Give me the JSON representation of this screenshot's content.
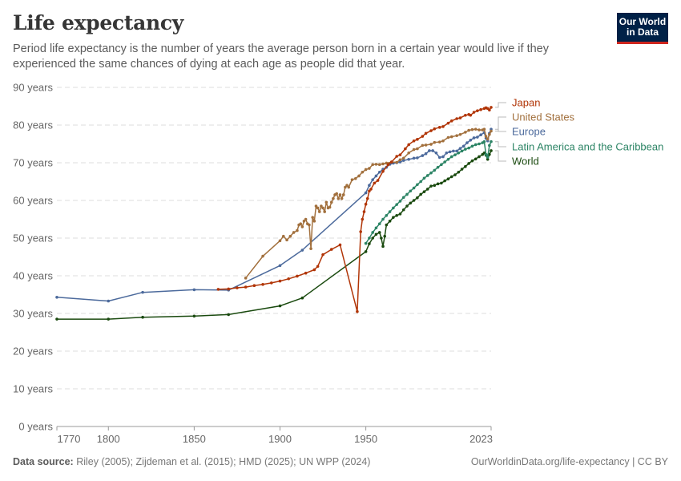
{
  "header": {
    "title": "Life expectancy",
    "subtitle": "Period life expectancy is the number of years the average person born in a certain year would live if they experienced the same chances of dying at each age as people did that year.",
    "logo_line1": "Our World",
    "logo_line2": "in Data"
  },
  "footer": {
    "source_label": "Data source:",
    "source_text": " Riley (2005); Zijdeman et al. (2015); HMD (2025); UN WPP (2024)",
    "url": "OurWorldinData.org/life-expectancy | CC BY"
  },
  "colors": {
    "Japan": "#b13507",
    "United States": "#a2703d",
    "Europe": "#4c6a9c",
    "Latin America and the Caribbean": "#2c8465",
    "World": "#1a4a0f",
    "grid": "#dddddd",
    "axis_text": "#666666"
  },
  "chart_data": {
    "type": "line",
    "title": "Life expectancy",
    "xlabel": "",
    "ylabel": "",
    "xlim": [
      1770,
      2023
    ],
    "ylim": [
      0,
      90
    ],
    "x_ticks": [
      1770,
      1800,
      1850,
      1900,
      1950,
      2023
    ],
    "y_ticks": [
      0,
      10,
      20,
      30,
      40,
      50,
      60,
      70,
      80,
      90
    ],
    "y_tick_labels": [
      "0 years",
      "10 years",
      "20 years",
      "30 years",
      "40 years",
      "50 years",
      "60 years",
      "70 years",
      "80 years",
      "90 years"
    ],
    "grid": true,
    "legend": "right",
    "series": [
      {
        "name": "Japan",
        "points": [
          [
            1864,
            36.4
          ],
          [
            1870,
            36.5
          ],
          [
            1875,
            36.8
          ],
          [
            1880,
            37.0
          ],
          [
            1885,
            37.4
          ],
          [
            1890,
            37.7
          ],
          [
            1895,
            38.1
          ],
          [
            1900,
            38.6
          ],
          [
            1905,
            39.2
          ],
          [
            1910,
            39.9
          ],
          [
            1915,
            40.7
          ],
          [
            1920,
            41.6
          ],
          [
            1922,
            42.5
          ],
          [
            1925,
            45.6
          ],
          [
            1930,
            47.0
          ],
          [
            1935,
            48.2
          ],
          [
            1945,
            30.5
          ],
          [
            1947,
            51.7
          ],
          [
            1948,
            55.0
          ],
          [
            1949,
            57.0
          ],
          [
            1950,
            59.0
          ],
          [
            1951,
            60.5
          ],
          [
            1952,
            62.5
          ],
          [
            1953,
            63.0
          ],
          [
            1955,
            64.6
          ],
          [
            1957,
            65.3
          ],
          [
            1960,
            67.7
          ],
          [
            1963,
            69.5
          ],
          [
            1965,
            70.2
          ],
          [
            1968,
            71.7
          ],
          [
            1970,
            72.1
          ],
          [
            1973,
            73.7
          ],
          [
            1975,
            74.8
          ],
          [
            1978,
            75.8
          ],
          [
            1980,
            76.2
          ],
          [
            1983,
            77.0
          ],
          [
            1985,
            77.8
          ],
          [
            1988,
            78.5
          ],
          [
            1990,
            79.0
          ],
          [
            1993,
            79.4
          ],
          [
            1995,
            79.6
          ],
          [
            1998,
            80.5
          ],
          [
            2000,
            81.1
          ],
          [
            2003,
            81.7
          ],
          [
            2005,
            81.9
          ],
          [
            2008,
            82.6
          ],
          [
            2010,
            82.8
          ],
          [
            2011,
            82.6
          ],
          [
            2013,
            83.4
          ],
          [
            2015,
            83.8
          ],
          [
            2017,
            84.1
          ],
          [
            2019,
            84.4
          ],
          [
            2020,
            84.6
          ],
          [
            2021,
            84.4
          ],
          [
            2022,
            84.0
          ],
          [
            2023,
            84.7
          ]
        ]
      },
      {
        "name": "United States",
        "points": [
          [
            1880,
            39.4
          ],
          [
            1890,
            45.2
          ],
          [
            1900,
            49.3
          ],
          [
            1902,
            50.5
          ],
          [
            1904,
            49.5
          ],
          [
            1906,
            50.5
          ],
          [
            1908,
            51.5
          ],
          [
            1910,
            52.0
          ],
          [
            1911,
            53.5
          ],
          [
            1912,
            53.8
          ],
          [
            1913,
            53.0
          ],
          [
            1914,
            54.5
          ],
          [
            1915,
            55.0
          ],
          [
            1916,
            53.8
          ],
          [
            1917,
            53.5
          ],
          [
            1918,
            47.2
          ],
          [
            1919,
            55.5
          ],
          [
            1920,
            54.5
          ],
          [
            1921,
            58.5
          ],
          [
            1922,
            58.0
          ],
          [
            1923,
            57.0
          ],
          [
            1924,
            58.5
          ],
          [
            1925,
            58.0
          ],
          [
            1926,
            57.0
          ],
          [
            1927,
            59.5
          ],
          [
            1928,
            58.0
          ],
          [
            1929,
            58.2
          ],
          [
            1930,
            59.5
          ],
          [
            1931,
            60.5
          ],
          [
            1932,
            61.5
          ],
          [
            1933,
            61.8
          ],
          [
            1934,
            60.5
          ],
          [
            1935,
            61.5
          ],
          [
            1936,
            60.5
          ],
          [
            1937,
            61.5
          ],
          [
            1938,
            63.5
          ],
          [
            1939,
            64.0
          ],
          [
            1940,
            63.5
          ],
          [
            1942,
            65.5
          ],
          [
            1944,
            65.8
          ],
          [
            1946,
            66.5
          ],
          [
            1948,
            67.5
          ],
          [
            1950,
            68.2
          ],
          [
            1952,
            68.5
          ],
          [
            1954,
            69.5
          ],
          [
            1956,
            69.6
          ],
          [
            1958,
            69.5
          ],
          [
            1960,
            69.7
          ],
          [
            1962,
            69.9
          ],
          [
            1965,
            70.2
          ],
          [
            1968,
            70.1
          ],
          [
            1970,
            70.8
          ],
          [
            1972,
            71.2
          ],
          [
            1975,
            72.6
          ],
          [
            1978,
            73.5
          ],
          [
            1980,
            73.7
          ],
          [
            1983,
            74.6
          ],
          [
            1985,
            74.7
          ],
          [
            1988,
            74.9
          ],
          [
            1990,
            75.4
          ],
          [
            1993,
            75.5
          ],
          [
            1995,
            75.8
          ],
          [
            1998,
            76.7
          ],
          [
            2000,
            76.9
          ],
          [
            2003,
            77.2
          ],
          [
            2005,
            77.5
          ],
          [
            2008,
            78.1
          ],
          [
            2010,
            78.6
          ],
          [
            2012,
            78.8
          ],
          [
            2014,
            78.9
          ],
          [
            2016,
            78.7
          ],
          [
            2018,
            78.7
          ],
          [
            2019,
            78.9
          ],
          [
            2020,
            77.0
          ],
          [
            2021,
            76.3
          ],
          [
            2022,
            77.5
          ],
          [
            2023,
            78.4
          ]
        ]
      },
      {
        "name": "Europe",
        "points": [
          [
            1770,
            34.3
          ],
          [
            1800,
            33.3
          ],
          [
            1820,
            35.6
          ],
          [
            1850,
            36.3
          ],
          [
            1870,
            36.2
          ],
          [
            1900,
            42.7
          ],
          [
            1913,
            46.8
          ],
          [
            1950,
            62.0
          ],
          [
            1952,
            64.0
          ],
          [
            1954,
            65.5
          ],
          [
            1956,
            66.5
          ],
          [
            1958,
            67.5
          ],
          [
            1960,
            68.3
          ],
          [
            1962,
            68.8
          ],
          [
            1964,
            69.6
          ],
          [
            1966,
            69.9
          ],
          [
            1968,
            70.0
          ],
          [
            1970,
            70.2
          ],
          [
            1972,
            70.6
          ],
          [
            1975,
            70.9
          ],
          [
            1978,
            71.2
          ],
          [
            1980,
            71.3
          ],
          [
            1983,
            71.9
          ],
          [
            1985,
            72.4
          ],
          [
            1987,
            73.2
          ],
          [
            1989,
            73.2
          ],
          [
            1991,
            72.6
          ],
          [
            1993,
            71.4
          ],
          [
            1995,
            71.6
          ],
          [
            1997,
            72.6
          ],
          [
            1999,
            72.9
          ],
          [
            2001,
            73.1
          ],
          [
            2003,
            73.1
          ],
          [
            2005,
            73.8
          ],
          [
            2007,
            74.4
          ],
          [
            2009,
            75.3
          ],
          [
            2011,
            76.0
          ],
          [
            2013,
            76.6
          ],
          [
            2015,
            76.8
          ],
          [
            2017,
            77.4
          ],
          [
            2019,
            78.0
          ],
          [
            2020,
            76.5
          ],
          [
            2021,
            75.8
          ],
          [
            2022,
            77.8
          ],
          [
            2023,
            78.9
          ]
        ]
      },
      {
        "name": "Latin America and the Caribbean",
        "points": [
          [
            1950,
            48.6
          ],
          [
            1952,
            50.0
          ],
          [
            1954,
            51.5
          ],
          [
            1956,
            52.7
          ],
          [
            1958,
            53.8
          ],
          [
            1960,
            55.0
          ],
          [
            1962,
            56.0
          ],
          [
            1964,
            57.0
          ],
          [
            1966,
            58.0
          ],
          [
            1968,
            58.9
          ],
          [
            1970,
            59.8
          ],
          [
            1972,
            60.8
          ],
          [
            1974,
            61.6
          ],
          [
            1976,
            62.5
          ],
          [
            1978,
            63.3
          ],
          [
            1980,
            64.2
          ],
          [
            1982,
            65.0
          ],
          [
            1984,
            65.9
          ],
          [
            1986,
            66.6
          ],
          [
            1988,
            67.3
          ],
          [
            1990,
            68.0
          ],
          [
            1992,
            68.8
          ],
          [
            1994,
            69.5
          ],
          [
            1996,
            70.2
          ],
          [
            1998,
            70.9
          ],
          [
            2000,
            71.6
          ],
          [
            2002,
            72.1
          ],
          [
            2004,
            72.6
          ],
          [
            2006,
            73.1
          ],
          [
            2008,
            73.6
          ],
          [
            2010,
            73.9
          ],
          [
            2012,
            74.4
          ],
          [
            2014,
            74.8
          ],
          [
            2016,
            75.0
          ],
          [
            2018,
            75.3
          ],
          [
            2019,
            75.6
          ],
          [
            2020,
            72.2
          ],
          [
            2021,
            71.5
          ],
          [
            2022,
            74.6
          ],
          [
            2023,
            75.6
          ]
        ]
      },
      {
        "name": "World",
        "points": [
          [
            1770,
            28.5
          ],
          [
            1800,
            28.5
          ],
          [
            1820,
            29.0
          ],
          [
            1850,
            29.3
          ],
          [
            1870,
            29.7
          ],
          [
            1900,
            32.0
          ],
          [
            1913,
            34.1
          ],
          [
            1950,
            46.4
          ],
          [
            1952,
            48.5
          ],
          [
            1954,
            50.0
          ],
          [
            1956,
            51.0
          ],
          [
            1958,
            51.5
          ],
          [
            1959,
            50.0
          ],
          [
            1960,
            47.8
          ],
          [
            1961,
            50.5
          ],
          [
            1962,
            53.5
          ],
          [
            1964,
            54.5
          ],
          [
            1966,
            55.5
          ],
          [
            1968,
            56.0
          ],
          [
            1970,
            56.4
          ],
          [
            1972,
            57.5
          ],
          [
            1974,
            58.5
          ],
          [
            1976,
            59.3
          ],
          [
            1978,
            60.0
          ],
          [
            1980,
            60.7
          ],
          [
            1982,
            61.6
          ],
          [
            1984,
            62.3
          ],
          [
            1986,
            63.0
          ],
          [
            1988,
            63.8
          ],
          [
            1990,
            64.0
          ],
          [
            1992,
            64.4
          ],
          [
            1994,
            64.6
          ],
          [
            1996,
            65.2
          ],
          [
            1998,
            65.7
          ],
          [
            2000,
            66.3
          ],
          [
            2002,
            66.8
          ],
          [
            2004,
            67.5
          ],
          [
            2006,
            68.3
          ],
          [
            2008,
            69.0
          ],
          [
            2010,
            69.8
          ],
          [
            2012,
            70.5
          ],
          [
            2014,
            71.0
          ],
          [
            2016,
            71.6
          ],
          [
            2018,
            72.2
          ],
          [
            2019,
            72.6
          ],
          [
            2020,
            72.0
          ],
          [
            2021,
            70.9
          ],
          [
            2022,
            72.2
          ],
          [
            2023,
            73.2
          ]
        ]
      }
    ],
    "legend_order": [
      "Japan",
      "United States",
      "Europe",
      "Latin America and the Caribbean",
      "World"
    ]
  }
}
